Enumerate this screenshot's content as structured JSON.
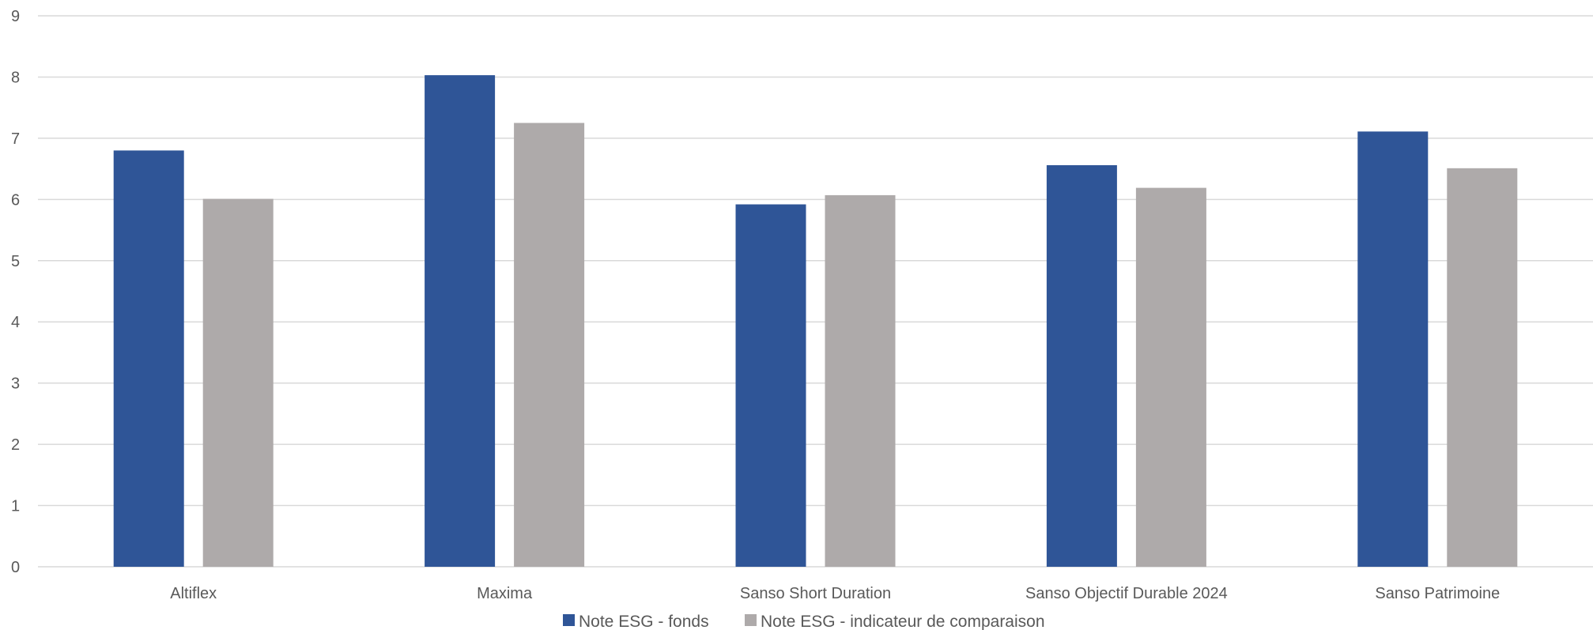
{
  "chart_data": {
    "type": "bar",
    "title": "",
    "xlabel": "",
    "ylabel": "",
    "ylim": [
      0,
      9
    ],
    "yticks": [
      "0",
      "1",
      "2",
      "3",
      "4",
      "5",
      "6",
      "7",
      "8",
      "9"
    ],
    "grid": true,
    "legend_position": "bottom",
    "categories": [
      "Altiflex",
      "Maxima",
      "Sanso Short Duration",
      "Sanso Objectif Durable 2024",
      "Sanso Patrimoine"
    ],
    "series": [
      {
        "name": "Note ESG - fonds",
        "color": "#2F5597",
        "values": [
          6.8,
          8.03,
          5.92,
          6.56,
          7.11
        ]
      },
      {
        "name": "Note ESG - indicateur de comparaison",
        "color": "#AEAAAA",
        "values": [
          6.01,
          7.25,
          6.07,
          6.19,
          6.51
        ]
      }
    ],
    "gridline_color": "#D9D9D9"
  }
}
